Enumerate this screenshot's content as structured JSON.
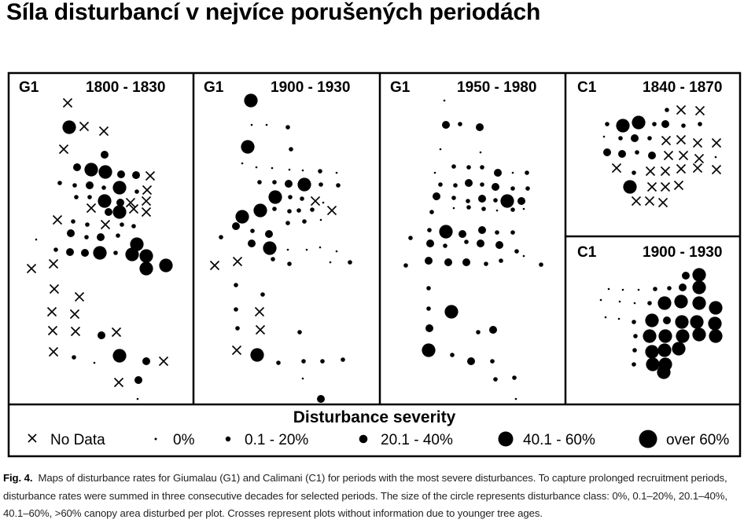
{
  "slide": {
    "title": "Síla disturbancí v nejvíce porušených periodách"
  },
  "panels": [
    {
      "id": "g1a",
      "stand": "G1",
      "period": "1800 - 1830"
    },
    {
      "id": "g1b",
      "stand": "G1",
      "period": "1900 - 1930"
    },
    {
      "id": "g1c",
      "stand": "G1",
      "period": "1950 - 1980"
    },
    {
      "id": "c1a",
      "stand": "C1",
      "period": "1840 - 1870"
    },
    {
      "id": "c1b",
      "stand": "C1",
      "period": "1900 - 1930"
    }
  ],
  "legend": {
    "title": "Disturbance severity",
    "items": [
      {
        "class": "x",
        "label": "No Data"
      },
      {
        "class": "0",
        "label": "0%"
      },
      {
        "class": "1",
        "label": "0.1 - 20%"
      },
      {
        "class": "2",
        "label": "20.1 - 40%"
      },
      {
        "class": "3",
        "label": "40.1 - 60%"
      },
      {
        "class": "4",
        "label": "over 60%"
      }
    ]
  },
  "caption": {
    "label": "Fig. 4.",
    "text": "Maps of disturbance rates for Giumalau (G1) and Calimani (C1) for periods with the most severe disturbances. To capture prolonged recruitment periods, disturbance rates were summed in three consecutive decades for selected periods. The size of the circle represents disturbance class: 0%, 0.1–20%, 20.1–40%, 40.1–60%, >60% canopy area disturbed per plot. Crosses represent plots without information due to younger tree ages."
  }
}
